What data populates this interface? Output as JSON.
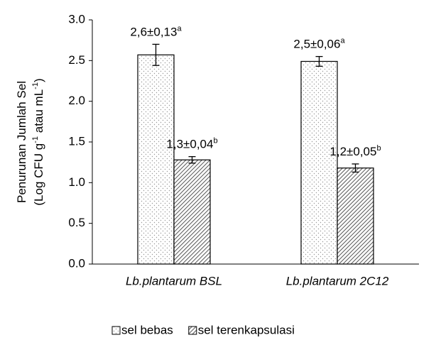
{
  "chart_data": {
    "type": "bar",
    "y_label": [
      "Penurunan Jumlah Sel",
      [
        "(Log CFU g",
        "-1",
        " atau  mL",
        "-1",
        ")"
      ]
    ],
    "categories": [
      "Lb.plantarum BSL",
      "Lb.plantarum 2C12"
    ],
    "series": [
      {
        "name": "sel bebas",
        "pattern": "dots",
        "color": "#000000",
        "values": [
          2.57,
          2.49
        ],
        "errors": [
          0.13,
          0.06
        ],
        "value_labels": [
          "2,6±0,13",
          "2,5±0,06"
        ],
        "significance": [
          "a",
          "a"
        ]
      },
      {
        "name": "sel terenkapsulasi",
        "pattern": "hatch",
        "color": "#000000",
        "values": [
          1.28,
          1.18
        ],
        "errors": [
          0.04,
          0.05
        ],
        "value_labels": [
          "1,3±0,04",
          "1,2±0,05"
        ],
        "significance": [
          "b",
          "b"
        ]
      }
    ],
    "ylim": [
      0,
      3
    ],
    "yticks": [
      {
        "value": 0,
        "label": "0.0"
      },
      0.5,
      {
        "value": 1,
        "label": "1.0"
      },
      1.5,
      {
        "value": 2,
        "label": "2.0"
      },
      2.5,
      {
        "value": 3,
        "label": "3.0"
      }
    ],
    "grid": false,
    "legend": "bottom"
  }
}
